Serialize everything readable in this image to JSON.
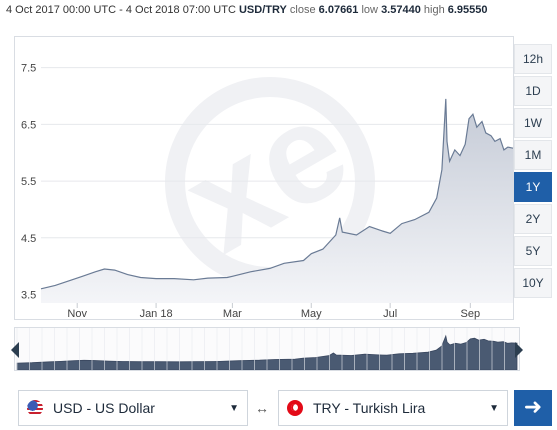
{
  "header": {
    "range_text": "4 Oct 2017 00:00 UTC - 4 Oct 2018 07:00 UTC",
    "pair": "USD/TRY",
    "close_label": "close",
    "close_value": "6.07661",
    "low_label": "low",
    "low_value": "3.57440",
    "high_label": "high",
    "high_value": "6.95550"
  },
  "range_buttons": [
    "12h",
    "1D",
    "1W",
    "1M",
    "1Y",
    "2Y",
    "5Y",
    "10Y"
  ],
  "active_range": "1Y",
  "watermark": "xe",
  "colors": {
    "accent": "#1f5fa8",
    "line": "#6a7b95",
    "fill_top": "#c4cad6",
    "fill_bottom": "#f4f5f8",
    "grid": "#e6e8ec"
  },
  "from_currency": {
    "label": "USD - US Dollar",
    "flag": "us-flag-icon"
  },
  "to_currency": {
    "label": "TRY - Turkish Lira",
    "flag": "tr-flag-icon"
  },
  "swap_symbol": "↔",
  "go_symbol": "➜",
  "chart_data": {
    "type": "area",
    "ylim": [
      3.35,
      7.9
    ],
    "yticks": [
      3.5,
      4.5,
      5.5,
      6.5,
      7.5
    ],
    "xlim": [
      "2017-10-04",
      "2018-10-04"
    ],
    "xticks": [
      {
        "label": "Nov",
        "date": "2017-11-01"
      },
      {
        "label": "Jan 18",
        "date": "2018-01-01"
      },
      {
        "label": "Mar",
        "date": "2018-03-01"
      },
      {
        "label": "May",
        "date": "2018-05-01"
      },
      {
        "label": "Jul",
        "date": "2018-07-01"
      },
      {
        "label": "Sep",
        "date": "2018-09-01"
      }
    ],
    "grid": true,
    "series": [
      {
        "points": [
          [
            "2017-10-04",
            3.6
          ],
          [
            "2017-10-15",
            3.66
          ],
          [
            "2017-10-28",
            3.76
          ],
          [
            "2017-11-05",
            3.82
          ],
          [
            "2017-11-15",
            3.9
          ],
          [
            "2017-11-22",
            3.95
          ],
          [
            "2017-11-30",
            3.93
          ],
          [
            "2017-12-10",
            3.85
          ],
          [
            "2017-12-20",
            3.8
          ],
          [
            "2018-01-01",
            3.78
          ],
          [
            "2018-01-15",
            3.78
          ],
          [
            "2018-01-30",
            3.76
          ],
          [
            "2018-02-10",
            3.79
          ],
          [
            "2018-02-25",
            3.8
          ],
          [
            "2018-03-01",
            3.82
          ],
          [
            "2018-03-15",
            3.9
          ],
          [
            "2018-03-30",
            3.96
          ],
          [
            "2018-04-10",
            4.05
          ],
          [
            "2018-04-25",
            4.1
          ],
          [
            "2018-05-01",
            4.22
          ],
          [
            "2018-05-10",
            4.3
          ],
          [
            "2018-05-20",
            4.55
          ],
          [
            "2018-05-23",
            4.85
          ],
          [
            "2018-05-25",
            4.6
          ],
          [
            "2018-06-05",
            4.55
          ],
          [
            "2018-06-15",
            4.7
          ],
          [
            "2018-06-25",
            4.62
          ],
          [
            "2018-07-01",
            4.58
          ],
          [
            "2018-07-10",
            4.75
          ],
          [
            "2018-07-20",
            4.82
          ],
          [
            "2018-07-31",
            4.95
          ],
          [
            "2018-08-06",
            5.2
          ],
          [
            "2018-08-10",
            5.7
          ],
          [
            "2018-08-13",
            6.95
          ],
          [
            "2018-08-14",
            6.2
          ],
          [
            "2018-08-16",
            5.85
          ],
          [
            "2018-08-20",
            6.05
          ],
          [
            "2018-08-24",
            5.95
          ],
          [
            "2018-08-28",
            6.15
          ],
          [
            "2018-08-31",
            6.6
          ],
          [
            "2018-09-03",
            6.68
          ],
          [
            "2018-09-06",
            6.45
          ],
          [
            "2018-09-10",
            6.55
          ],
          [
            "2018-09-13",
            6.35
          ],
          [
            "2018-09-17",
            6.3
          ],
          [
            "2018-09-20",
            6.2
          ],
          [
            "2018-09-24",
            6.25
          ],
          [
            "2018-09-27",
            6.05
          ],
          [
            "2018-09-30",
            6.1
          ],
          [
            "2018-10-04",
            6.08
          ]
        ]
      }
    ]
  }
}
